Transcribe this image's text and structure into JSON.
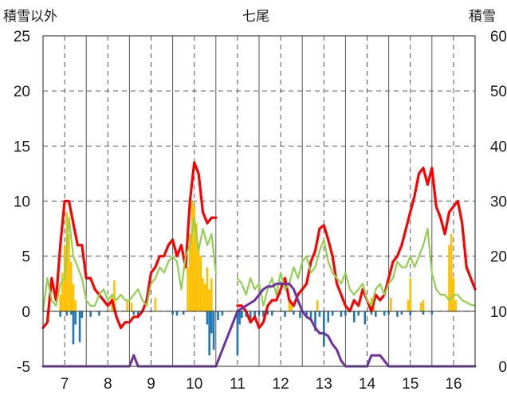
{
  "chart_data": {
    "type": "line",
    "title": "七尾",
    "ylabel_left": "積雪以外",
    "ylabel_right": "積雪",
    "xlim": [
      6.5,
      16.5
    ],
    "ylim_left": [
      -5,
      25
    ],
    "ylim_right": [
      0,
      60
    ],
    "x_ticks": [
      "7",
      "8",
      "9",
      "10",
      "11",
      "12",
      "13",
      "14",
      "15",
      "16"
    ],
    "y_ticks_left": [
      "25",
      "20",
      "15",
      "10",
      "5",
      "0",
      "-5"
    ],
    "y_ticks_right": [
      "60",
      "50",
      "40",
      "30",
      "20",
      "10",
      "0"
    ],
    "grid": true,
    "series": [
      {
        "kind": "bar",
        "axis": "left",
        "color": "#ffc000",
        "x": [
          6.9,
          6.95,
          7.0,
          7.05,
          7.1,
          7.15,
          7.2,
          7.25,
          8.1,
          8.15,
          8.45,
          8.55,
          9.1,
          9.85,
          9.9,
          9.95,
          10.0,
          10.05,
          10.1,
          10.15,
          10.2,
          10.25,
          10.3,
          10.35,
          10.4,
          12.2,
          12.25,
          12.85,
          14.1,
          14.15,
          14.55,
          14.95,
          15.0,
          15.25,
          15.3,
          15.9,
          15.95,
          16.0,
          16.05
        ],
        "values": [
          1.5,
          3.5,
          6.0,
          9.0,
          7.0,
          4.5,
          2.5,
          1.0,
          1.5,
          2.8,
          1.0,
          0.8,
          1.2,
          4.0,
          7.0,
          10.0,
          9.5,
          8.0,
          6.0,
          5.0,
          3.0,
          2.5,
          4.0,
          2.0,
          3.0,
          1.2,
          0.6,
          1.0,
          1.2,
          0.6,
          1.2,
          1.0,
          3.0,
          0.8,
          1.0,
          6.0,
          7.0,
          3.0,
          1.0
        ]
      },
      {
        "kind": "bar",
        "axis": "left",
        "color": "#1f77b4",
        "x": [
          6.9,
          7.05,
          7.15,
          7.2,
          7.25,
          7.35,
          7.4,
          7.6,
          7.8,
          8.6,
          8.7,
          9.5,
          9.6,
          9.75,
          10.3,
          10.35,
          10.4,
          10.45,
          10.55,
          10.65,
          11.0,
          11.05,
          11.1,
          11.2,
          11.3,
          11.4,
          11.5,
          11.6,
          11.7,
          11.8,
          12.1,
          12.3,
          12.45,
          12.6,
          12.7,
          12.8,
          12.9,
          13.0,
          13.1,
          13.2,
          13.4,
          13.5,
          13.7,
          13.8,
          13.95,
          14.1,
          14.2,
          14.4,
          14.5,
          14.7,
          14.8,
          15.0,
          15.3,
          15.5
        ],
        "values": [
          -0.5,
          -0.4,
          -0.3,
          -3.0,
          -1.2,
          -2.8,
          -0.6,
          -0.5,
          -0.4,
          -0.3,
          -0.4,
          -0.3,
          -0.4,
          -0.3,
          -1.2,
          -4.0,
          -2.0,
          -3.5,
          -0.8,
          -0.4,
          -4.0,
          -1.2,
          -0.6,
          -0.5,
          -1.0,
          -0.6,
          -0.4,
          -0.5,
          -0.3,
          -0.4,
          -0.5,
          -0.3,
          -0.6,
          -0.4,
          -0.8,
          -1.8,
          -0.5,
          -3.2,
          -1.0,
          -0.4,
          -0.5,
          -0.4,
          -1.0,
          -0.4,
          -1.2,
          -0.3,
          -0.5,
          -0.4,
          -0.3,
          -0.5,
          -0.3,
          -0.4,
          -0.3,
          -0.3
        ]
      },
      {
        "kind": "line",
        "axis": "left",
        "color": "#ff0000",
        "x": [
          6.5,
          6.6,
          6.7,
          6.8,
          6.9,
          7.0,
          7.1,
          7.2,
          7.3,
          7.4,
          7.5,
          7.6,
          7.7,
          7.8,
          7.9,
          8.0,
          8.1,
          8.2,
          8.3,
          8.4,
          8.5,
          8.6,
          8.7,
          8.8,
          8.9,
          9.0,
          9.1,
          9.2,
          9.3,
          9.4,
          9.5,
          9.6,
          9.7,
          9.8,
          9.9,
          10.0,
          10.1,
          10.2,
          10.3,
          10.4,
          10.5,
          11.0,
          11.1,
          11.2,
          11.3,
          11.4,
          11.5,
          11.6,
          11.7,
          11.8,
          11.9,
          12.0,
          12.1,
          12.2,
          12.3,
          12.4,
          12.5,
          12.6,
          12.7,
          12.8,
          12.9,
          13.0,
          13.1,
          13.2,
          13.3,
          13.4,
          13.5,
          13.6,
          13.7,
          13.8,
          13.9,
          14.0,
          14.1,
          14.2,
          14.3,
          14.4,
          14.5,
          14.6,
          14.7,
          14.8,
          14.9,
          15.0,
          15.1,
          15.2,
          15.3,
          15.4,
          15.5,
          15.6,
          15.7,
          15.8,
          15.9,
          16.0,
          16.1,
          16.2,
          16.3,
          16.4,
          16.5
        ],
        "values": [
          -1.5,
          -1.0,
          3.0,
          1.0,
          6.0,
          10.0,
          10.0,
          8.0,
          6.0,
          6.0,
          3.0,
          3.0,
          2.0,
          1.5,
          1.0,
          0.5,
          1.0,
          -0.5,
          -1.5,
          -1.0,
          -1.0,
          -0.5,
          -0.5,
          0.0,
          1.0,
          3.5,
          4.0,
          5.0,
          5.0,
          6.0,
          6.5,
          5.0,
          6.0,
          4.0,
          10.0,
          13.5,
          12.5,
          9.0,
          8.0,
          8.5,
          8.5,
          0.5,
          0.5,
          0.0,
          -1.0,
          -0.5,
          -1.5,
          -1.0,
          0.5,
          1.0,
          1.0,
          2.0,
          3.0,
          1.0,
          0.5,
          1.5,
          2.0,
          2.5,
          4.5,
          5.5,
          7.5,
          7.8,
          6.5,
          5.0,
          2.5,
          1.5,
          0.5,
          0.0,
          1.0,
          0.5,
          2.0,
          1.0,
          0.0,
          1.5,
          1.0,
          1.5,
          3.0,
          4.5,
          5.0,
          6.0,
          7.5,
          9.0,
          10.5,
          12.5,
          13.0,
          11.5,
          13.0,
          9.5,
          8.5,
          7.0,
          9.0,
          9.5,
          10.0,
          8.0,
          4.0,
          3.0,
          2.0
        ]
      },
      {
        "kind": "line",
        "axis": "left",
        "color": "#92d050",
        "x": [
          6.5,
          6.6,
          6.7,
          6.8,
          6.9,
          7.0,
          7.1,
          7.2,
          7.3,
          7.4,
          7.5,
          7.6,
          7.7,
          7.8,
          7.9,
          8.0,
          8.1,
          8.2,
          8.3,
          8.4,
          8.5,
          8.6,
          8.7,
          8.8,
          8.9,
          9.0,
          9.1,
          9.2,
          9.3,
          9.4,
          9.5,
          9.6,
          9.7,
          9.8,
          9.9,
          10.0,
          10.1,
          10.2,
          10.3,
          10.4,
          10.5,
          11.0,
          11.1,
          11.2,
          11.3,
          11.4,
          11.5,
          11.6,
          11.7,
          11.8,
          11.9,
          12.0,
          12.1,
          12.2,
          12.3,
          12.4,
          12.5,
          12.6,
          12.7,
          12.8,
          12.9,
          13.0,
          13.1,
          13.2,
          13.3,
          13.4,
          13.5,
          13.6,
          13.7,
          13.8,
          13.9,
          14.0,
          14.1,
          14.2,
          14.3,
          14.4,
          14.5,
          14.6,
          14.7,
          14.8,
          14.9,
          15.0,
          15.1,
          15.2,
          15.3,
          15.4,
          15.5,
          15.6,
          15.7,
          15.8,
          15.9,
          16.0,
          16.1,
          16.2,
          16.3,
          16.4,
          16.5
        ],
        "values": [
          0.0,
          3.0,
          1.0,
          0.5,
          2.5,
          3.0,
          8.5,
          5.0,
          4.0,
          3.0,
          1.0,
          0.5,
          0.5,
          1.5,
          2.0,
          1.0,
          1.5,
          1.0,
          1.5,
          1.0,
          1.0,
          1.5,
          2.0,
          1.0,
          0.5,
          2.5,
          3.0,
          4.0,
          3.5,
          4.5,
          5.0,
          4.5,
          2.0,
          5.0,
          6.0,
          8.5,
          5.5,
          7.5,
          6.0,
          7.0,
          3.5,
          3.0,
          2.5,
          1.5,
          3.0,
          2.0,
          2.5,
          0.5,
          2.0,
          3.0,
          1.5,
          3.5,
          2.0,
          2.5,
          4.0,
          3.0,
          4.5,
          5.0,
          3.5,
          4.0,
          5.5,
          6.5,
          4.5,
          3.5,
          3.0,
          2.5,
          3.5,
          2.0,
          1.5,
          2.0,
          2.5,
          1.0,
          0.5,
          2.0,
          2.5,
          1.5,
          2.5,
          3.0,
          4.5,
          4.0,
          4.0,
          5.0,
          4.0,
          5.0,
          6.0,
          7.5,
          3.5,
          2.0,
          1.5,
          1.5,
          1.0,
          1.5,
          1.5,
          1.0,
          0.8,
          0.6,
          0.5
        ]
      },
      {
        "kind": "line",
        "axis": "right",
        "color": "#7030a0",
        "x": [
          6.5,
          8.5,
          8.55,
          8.6,
          8.65,
          8.7,
          10.5,
          11.0,
          11.1,
          11.2,
          11.3,
          11.4,
          11.5,
          11.6,
          11.7,
          11.8,
          11.9,
          12.0,
          12.1,
          12.2,
          12.3,
          12.4,
          12.5,
          12.6,
          12.7,
          12.8,
          12.9,
          13.0,
          13.1,
          13.2,
          13.3,
          13.4,
          13.5,
          14.0,
          14.1,
          14.2,
          14.3,
          14.4,
          14.5,
          16.5
        ],
        "values": [
          0,
          0,
          1,
          2,
          1,
          0,
          0,
          10,
          10.5,
          11,
          11.5,
          12,
          13,
          14,
          14.5,
          14.5,
          15,
          15,
          15,
          15,
          14,
          12,
          10,
          9,
          8.5,
          7,
          6,
          6,
          5.5,
          4,
          3,
          1,
          0,
          0,
          2,
          2,
          2,
          1,
          0,
          0
        ]
      }
    ]
  }
}
